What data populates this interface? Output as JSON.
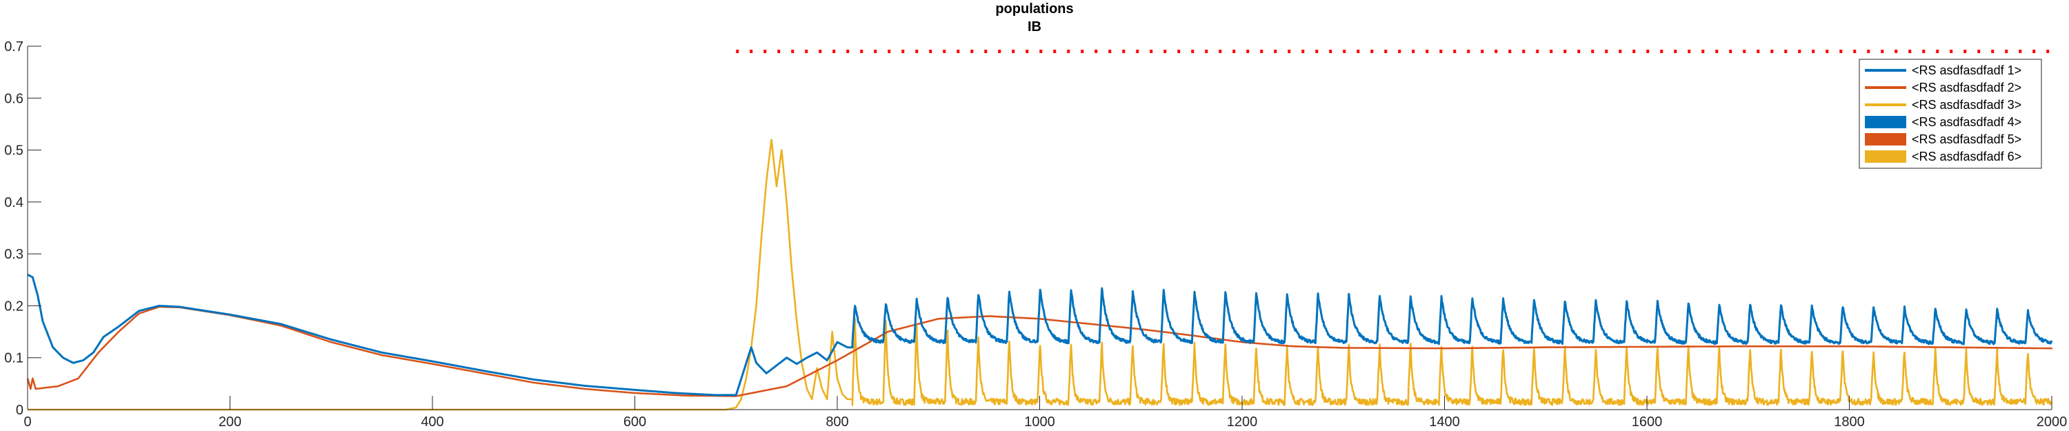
{
  "chart_data": {
    "type": "line",
    "title": "populations",
    "subtitle": "IB",
    "xlabel": "",
    "ylabel": "",
    "xlim": [
      0,
      2000
    ],
    "ylim": [
      0,
      0.7
    ],
    "x_ticks": [
      0,
      200,
      400,
      600,
      800,
      1000,
      1200,
      1400,
      1600,
      1800,
      2000
    ],
    "y_ticks": [
      0,
      0.1,
      0.2,
      0.3,
      0.4,
      0.5,
      0.6,
      0.7
    ],
    "y_tick_labels": [
      "0",
      "0.1",
      "0.2",
      "0.3",
      "0.4",
      "0.5",
      "0.6",
      "0.7"
    ],
    "grid": false,
    "legend_placement": "top-right",
    "legend": [
      {
        "name": "<RS asdfasdfadf 1>",
        "style": "line",
        "color": "#0072BD"
      },
      {
        "name": "<RS asdfasdfadf 2>",
        "style": "line",
        "color": "#D95319"
      },
      {
        "name": "<RS asdfasdfadf 3>",
        "style": "line",
        "color": "#EDB120"
      },
      {
        "name": "<RS asdfasdfadf 4>",
        "style": "patch",
        "color": "#0072BD"
      },
      {
        "name": "<RS asdfasdfadf 5>",
        "style": "patch",
        "color": "#D95319"
      },
      {
        "name": "<RS asdfasdfadf 6>",
        "style": "patch",
        "color": "#EDB120"
      }
    ],
    "marker_line": {
      "color": "#FF0000",
      "y": 0.69,
      "x_range": [
        700,
        2000
      ],
      "style": "dotted"
    },
    "series": [
      {
        "color": "#0072BD",
        "points": [
          [
            0,
            0.26
          ],
          [
            5,
            0.255
          ],
          [
            10,
            0.22
          ],
          [
            15,
            0.17
          ],
          [
            25,
            0.12
          ],
          [
            35,
            0.1
          ],
          [
            45,
            0.09
          ],
          [
            55,
            0.095
          ],
          [
            65,
            0.11
          ],
          [
            75,
            0.14
          ],
          [
            90,
            0.16
          ],
          [
            110,
            0.19
          ],
          [
            130,
            0.2
          ],
          [
            150,
            0.198
          ],
          [
            200,
            0.183
          ],
          [
            250,
            0.165
          ],
          [
            300,
            0.135
          ],
          [
            350,
            0.11
          ],
          [
            400,
            0.093
          ],
          [
            450,
            0.075
          ],
          [
            500,
            0.058
          ],
          [
            550,
            0.046
          ],
          [
            600,
            0.038
          ],
          [
            640,
            0.032
          ],
          [
            680,
            0.028
          ],
          [
            700,
            0.028
          ],
          [
            715,
            0.12
          ],
          [
            720,
            0.09
          ],
          [
            730,
            0.07
          ],
          [
            740,
            0.085
          ],
          [
            750,
            0.1
          ],
          [
            760,
            0.088
          ],
          [
            770,
            0.1
          ],
          [
            780,
            0.11
          ],
          [
            790,
            0.095
          ],
          [
            800,
            0.13
          ],
          [
            810,
            0.12
          ]
        ],
        "pulses": {
          "start": 815,
          "end": 2000,
          "period": 30.5,
          "base_start": 0.13,
          "base_end": 0.128,
          "peak_start": 0.2,
          "peak_mid": 0.235,
          "peak_end": 0.19
        }
      },
      {
        "color": "#D95319",
        "points": [
          [
            0,
            0.06
          ],
          [
            3,
            0.04
          ],
          [
            5,
            0.06
          ],
          [
            8,
            0.04
          ],
          [
            30,
            0.045
          ],
          [
            50,
            0.06
          ],
          [
            70,
            0.11
          ],
          [
            90,
            0.15
          ],
          [
            110,
            0.185
          ],
          [
            130,
            0.198
          ],
          [
            150,
            0.197
          ],
          [
            200,
            0.182
          ],
          [
            250,
            0.162
          ],
          [
            300,
            0.13
          ],
          [
            350,
            0.105
          ],
          [
            400,
            0.088
          ],
          [
            450,
            0.07
          ],
          [
            500,
            0.052
          ],
          [
            550,
            0.04
          ],
          [
            600,
            0.032
          ],
          [
            650,
            0.027
          ],
          [
            700,
            0.026
          ],
          [
            750,
            0.045
          ],
          [
            800,
            0.095
          ],
          [
            850,
            0.15
          ],
          [
            900,
            0.175
          ],
          [
            950,
            0.18
          ],
          [
            1000,
            0.175
          ],
          [
            1050,
            0.165
          ],
          [
            1100,
            0.155
          ],
          [
            1150,
            0.143
          ],
          [
            1200,
            0.13
          ],
          [
            1250,
            0.122
          ],
          [
            1300,
            0.119
          ],
          [
            1400,
            0.118
          ],
          [
            1500,
            0.12
          ],
          [
            1600,
            0.121
          ],
          [
            1700,
            0.122
          ],
          [
            1800,
            0.122
          ],
          [
            1900,
            0.12
          ],
          [
            2000,
            0.118
          ]
        ]
      },
      {
        "color": "#EDB120",
        "points": [
          [
            0,
            0.0
          ],
          [
            650,
            0.0
          ],
          [
            690,
            0.0
          ],
          [
            700,
            0.004
          ],
          [
            705,
            0.02
          ],
          [
            710,
            0.06
          ],
          [
            715,
            0.12
          ],
          [
            720,
            0.2
          ],
          [
            725,
            0.33
          ],
          [
            730,
            0.44
          ],
          [
            735,
            0.52
          ],
          [
            740,
            0.43
          ],
          [
            745,
            0.5
          ],
          [
            750,
            0.4
          ],
          [
            755,
            0.27
          ],
          [
            760,
            0.17
          ],
          [
            765,
            0.09
          ],
          [
            770,
            0.04
          ],
          [
            775,
            0.02
          ],
          [
            780,
            0.08
          ],
          [
            785,
            0.04
          ],
          [
            790,
            0.02
          ],
          [
            795,
            0.15
          ],
          [
            800,
            0.06
          ],
          [
            805,
            0.03
          ],
          [
            810,
            0.02
          ]
        ],
        "pulses": {
          "start": 815,
          "end": 2000,
          "period": 30.5,
          "base": 0.015,
          "peak_start": 0.18,
          "peak_mid": 0.13,
          "peak_end": 0.115
        }
      }
    ]
  }
}
